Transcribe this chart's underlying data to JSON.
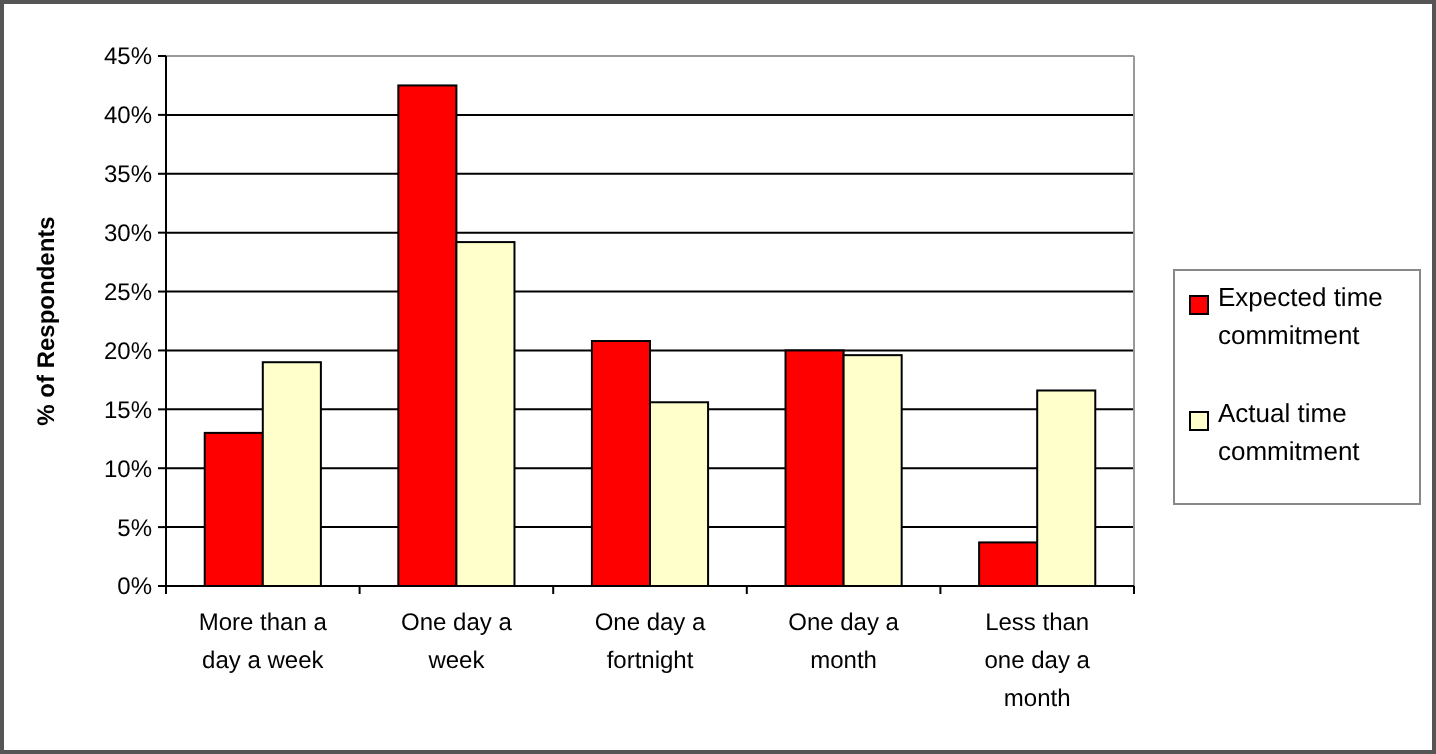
{
  "chart_data": {
    "type": "bar",
    "ylabel": "% of Respondents",
    "categories": [
      "More than a day a week",
      "One day a week",
      "One day a fortnight",
      "One day a month",
      "Less than one day a month"
    ],
    "series": [
      {
        "name": "Expected time commitment",
        "color": "#ff0000",
        "values": [
          13,
          42.5,
          20.8,
          20,
          3.7
        ]
      },
      {
        "name": "Actual time commitment",
        "color": "#ffffcc",
        "values": [
          19,
          29.2,
          15.6,
          19.6,
          16.6
        ]
      }
    ],
    "ylim": [
      0,
      45
    ],
    "yticks": [
      {
        "value": 0,
        "label": "0%"
      },
      {
        "value": 5,
        "label": "5%"
      },
      {
        "value": 10,
        "label": "10%"
      },
      {
        "value": 15,
        "label": "15%"
      },
      {
        "value": 20,
        "label": "20%"
      },
      {
        "value": 25,
        "label": "25%"
      },
      {
        "value": 30,
        "label": "30%"
      },
      {
        "value": 35,
        "label": "35%"
      },
      {
        "value": 40,
        "label": "40%"
      },
      {
        "value": 45,
        "label": "45%"
      }
    ],
    "grid": "y",
    "legend": "right"
  }
}
